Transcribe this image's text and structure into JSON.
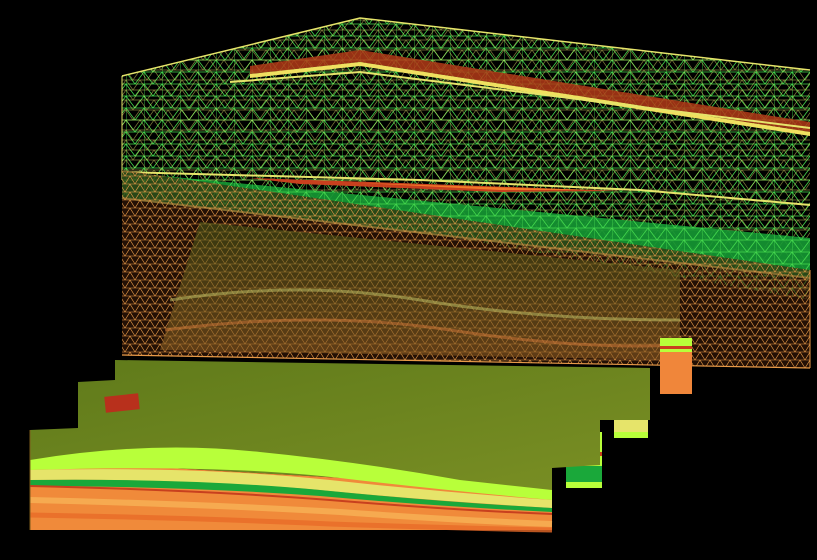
{
  "colors": {
    "background": "#000000",
    "mesh_green": "#3fd24a",
    "mesh_yellow": "#e9e66a",
    "mesh_orange": "#e08a3c",
    "horizon_red": "#c8401e",
    "green_band": "#1aa83a",
    "slab_top": "#6f8a1e",
    "slab_light_green": "#b8ff3a",
    "slab_orange": "#f08a3a"
  },
  "icons": {
    "wireframe_model": "geologic-wireframe-mesh",
    "solid_model": "stratigraphic-block-model"
  }
}
